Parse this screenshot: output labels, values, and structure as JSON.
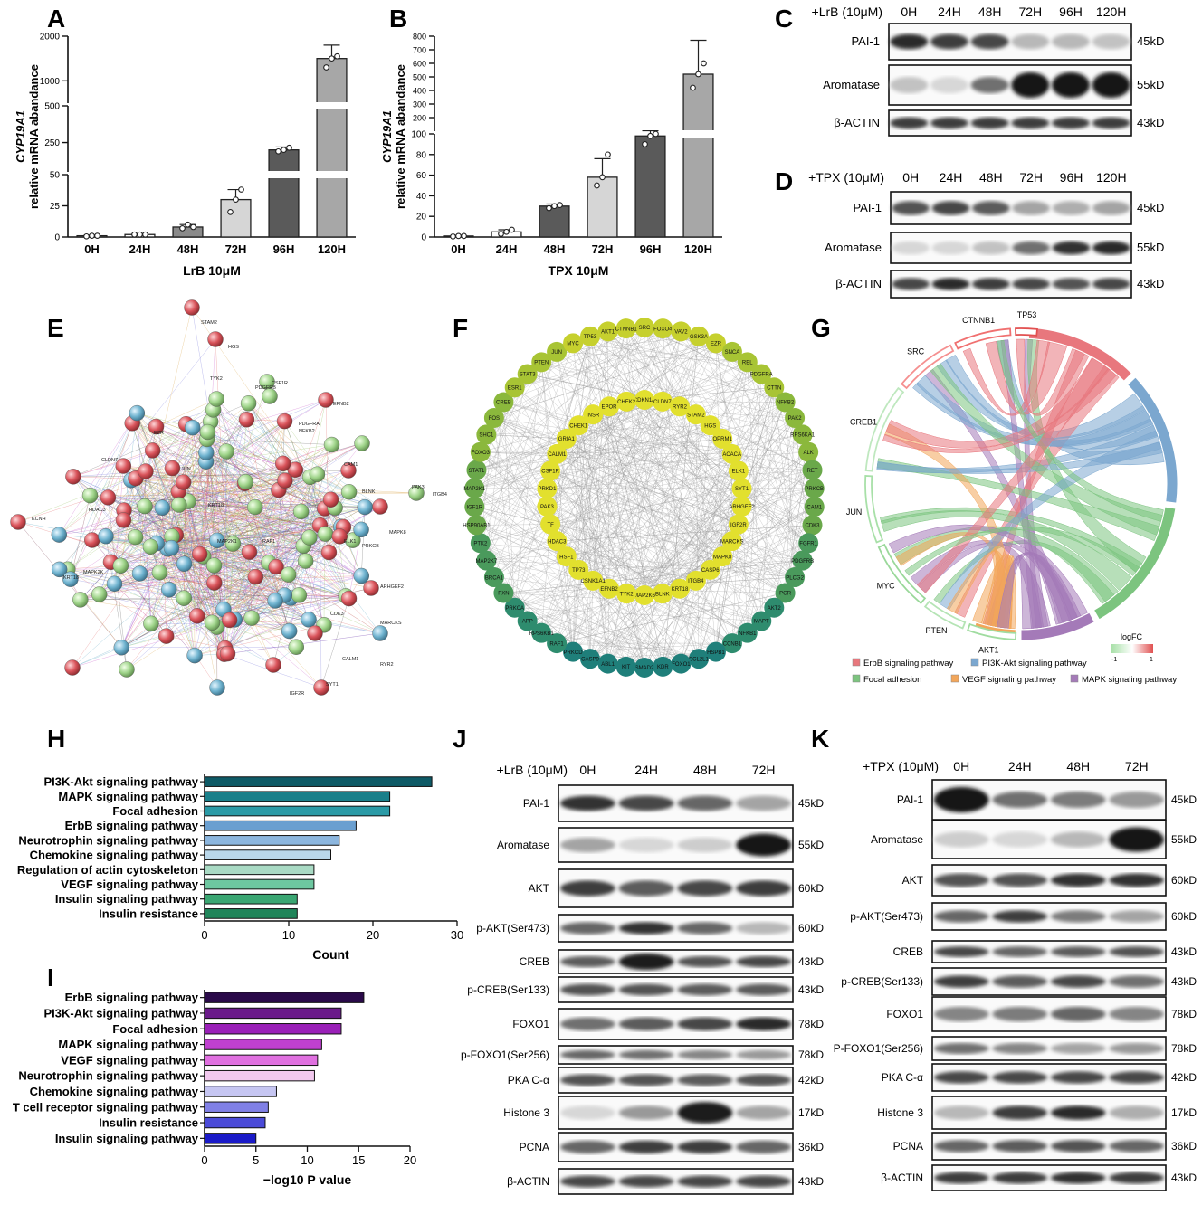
{
  "panels": {
    "A": "A",
    "B": "B",
    "C": "C",
    "D": "D",
    "E": "E",
    "F": "F",
    "G": "G",
    "H": "H",
    "I": "I",
    "J": "J",
    "K": "K"
  },
  "chart_data": [
    {
      "panel": "A",
      "type": "bar",
      "categories": [
        "0H",
        "24H",
        "48H",
        "72H",
        "96H",
        "120H"
      ],
      "values": [
        1,
        2,
        8,
        30,
        200,
        1500
      ],
      "points": [
        [
          0.5,
          1,
          1
        ],
        [
          2,
          2,
          2
        ],
        [
          7,
          10,
          8
        ],
        [
          20,
          30,
          38
        ],
        [
          190,
          200,
          215
        ],
        [
          1300,
          1500,
          1550
        ]
      ],
      "error": [
        0.5,
        0.5,
        2,
        8,
        20,
        300
      ],
      "ylabel_gene": "CYP19A1",
      "ylabel": "relative mRNA abandance",
      "xlabel": "LrB 10μM",
      "yticks_labels": [
        "0",
        "25",
        "50",
        "250",
        "500",
        "1000",
        "2000"
      ],
      "colors": [
        "#ffffff",
        "#ffffff",
        "#8a8a8a",
        "#d6d6d6",
        "#5a5a5a",
        "#a7a7a7"
      ]
    },
    {
      "panel": "B",
      "type": "bar",
      "categories": [
        "0H",
        "24H",
        "48H",
        "72H",
        "96H",
        "120H"
      ],
      "values": [
        1,
        5,
        30,
        58,
        98,
        520
      ],
      "points": [
        [
          0.5,
          1,
          1
        ],
        [
          3,
          5,
          7
        ],
        [
          28,
          30,
          31
        ],
        [
          50,
          58,
          80
        ],
        [
          90,
          98,
          100
        ],
        [
          420,
          520,
          600
        ]
      ],
      "error": [
        0.5,
        2,
        2,
        18,
        5,
        250
      ],
      "ylabel_gene": "CYP19A1",
      "ylabel": "relative mRNA abandance",
      "xlabel": "TPX 10μM",
      "yticks_labels": [
        "0",
        "20",
        "40",
        "60",
        "80",
        "100",
        "200",
        "300",
        "400",
        "500",
        "600",
        "700",
        "800"
      ],
      "colors": [
        "#ffffff",
        "#ffffff",
        "#5a5a5a",
        "#d6d6d6",
        "#5a5a5a",
        "#a7a7a7"
      ]
    },
    {
      "panel": "H",
      "type": "bar",
      "categories": [
        "PI3K-Akt signaling pathway",
        "MAPK signaling pathway",
        "Focal adhesion",
        "ErbB signaling pathway",
        "Neurotrophin signaling pathway",
        "Chemokine signaling pathway",
        "Regulation of actin cytoskeleton",
        "VEGF signaling pathway",
        "Insulin signaling pathway",
        "Insulin resistance"
      ],
      "values": [
        27,
        22,
        22,
        18,
        16,
        15,
        13,
        13,
        11,
        11
      ],
      "xlabel": "Count",
      "xticks": [
        "0",
        "10",
        "20",
        "30"
      ],
      "xlim": [
        0,
        30
      ],
      "colors": [
        "#0e5a66",
        "#1a7f8a",
        "#2a9aa6",
        "#6a9fd0",
        "#8cb6de",
        "#b9d7ea",
        "#a9dac4",
        "#6dc7a0",
        "#3aa672",
        "#20855a"
      ]
    },
    {
      "panel": "I",
      "type": "bar",
      "categories": [
        "ErbB signaling pathway",
        "PI3K-Akt signaling pathway",
        "Focal adhesion",
        "MAPK signaling pathway",
        "VEGF signaling pathway",
        "Neurotrophin signaling pathway",
        "Chemokine signaling pathway",
        "T cell receptor signaling pathway",
        "Insulin resistance",
        "Insulin signaling pathway"
      ],
      "values": [
        15.5,
        13.3,
        13.3,
        11.4,
        11,
        10.7,
        7,
        6.2,
        5.9,
        5
      ],
      "xlabel": "−log10 P value",
      "xticks": [
        "0",
        "5",
        "10",
        "15",
        "20"
      ],
      "xlim": [
        0,
        20
      ],
      "colors": [
        "#2a0a4a",
        "#6a1a8a",
        "#9a20b8",
        "#c040d0",
        "#e070e0",
        "#f2c8ee",
        "#c6c6f2",
        "#8080e6",
        "#4a4ad8",
        "#1a1ac8"
      ]
    }
  ],
  "blots": {
    "C": {
      "treatment": "+LrB (10μM)",
      "times": [
        "0H",
        "24H",
        "48H",
        "72H",
        "96H",
        "120H"
      ],
      "rows": [
        {
          "name": "PAI-1",
          "kd": "45kD",
          "intensity": [
            0.9,
            0.8,
            0.75,
            0.2,
            0.2,
            0.15
          ]
        },
        {
          "name": "Aromatase",
          "kd": "55kD",
          "intensity": [
            0.15,
            0.05,
            0.55,
            1,
            1,
            1
          ]
        },
        {
          "name": "β-ACTIN",
          "kd": "43kD",
          "intensity": [
            0.8,
            0.8,
            0.8,
            0.8,
            0.8,
            0.8
          ]
        }
      ]
    },
    "D": {
      "treatment": "+TPX (10μM)",
      "times": [
        "0H",
        "24H",
        "48H",
        "72H",
        "96H",
        "120H"
      ],
      "rows": [
        {
          "name": "PAI-1",
          "kd": "45kD",
          "intensity": [
            0.7,
            0.75,
            0.65,
            0.3,
            0.25,
            0.3
          ]
        },
        {
          "name": "Aromatase",
          "kd": "55kD",
          "intensity": [
            0.05,
            0.05,
            0.15,
            0.55,
            0.85,
            0.9
          ]
        },
        {
          "name": "β-ACTIN",
          "kd": "43kD",
          "intensity": [
            0.75,
            0.9,
            0.8,
            0.75,
            0.7,
            0.75
          ]
        }
      ]
    },
    "J": {
      "treatment": "+LrB (10μM)",
      "times": [
        "0H",
        "24H",
        "48H",
        "72H"
      ],
      "rows": [
        {
          "name": "PAI-1",
          "kd": "45kD",
          "intensity": [
            0.85,
            0.75,
            0.6,
            0.3
          ]
        },
        {
          "name": "Aromatase",
          "kd": "55kD",
          "intensity": [
            0.3,
            0.05,
            0.1,
            1
          ]
        },
        {
          "name": "AKT",
          "kd": "60kD",
          "intensity": [
            0.8,
            0.65,
            0.75,
            0.8
          ]
        },
        {
          "name": "p-AKT(Ser473)",
          "kd": "60kD",
          "intensity": [
            0.6,
            0.85,
            0.6,
            0.2
          ]
        },
        {
          "name": "CREB",
          "kd": "43kD",
          "intensity": [
            0.65,
            0.95,
            0.7,
            0.75
          ]
        },
        {
          "name": "p-CREB(Ser133)",
          "kd": "43kD",
          "intensity": [
            0.7,
            0.7,
            0.65,
            0.65
          ]
        },
        {
          "name": "FOXO1",
          "kd": "78kD",
          "intensity": [
            0.55,
            0.65,
            0.75,
            0.9
          ]
        },
        {
          "name": "p-FOXO1(Ser256)",
          "kd": "78kD",
          "intensity": [
            0.6,
            0.55,
            0.45,
            0.35
          ]
        },
        {
          "name": "PKA C-α",
          "kd": "42kD",
          "intensity": [
            0.7,
            0.7,
            0.65,
            0.7
          ]
        },
        {
          "name": "Histone 3",
          "kd": "17kD",
          "intensity": [
            0.05,
            0.35,
            0.95,
            0.3
          ]
        },
        {
          "name": "PCNA",
          "kd": "36kD",
          "intensity": [
            0.6,
            0.8,
            0.8,
            0.6
          ]
        },
        {
          "name": "β-ACTIN",
          "kd": "43kD",
          "intensity": [
            0.75,
            0.75,
            0.75,
            0.75
          ]
        }
      ]
    },
    "K": {
      "treatment": "+TPX (10μM)",
      "times": [
        "0H",
        "24H",
        "48H",
        "72H"
      ],
      "rows": [
        {
          "name": "PAI-1",
          "kd": "45kD",
          "intensity": [
            1,
            0.55,
            0.5,
            0.35
          ]
        },
        {
          "name": "Aromatase",
          "kd": "55kD",
          "intensity": [
            0.1,
            0.05,
            0.2,
            1
          ]
        },
        {
          "name": "AKT",
          "kd": "60kD",
          "intensity": [
            0.7,
            0.7,
            0.85,
            0.85
          ]
        },
        {
          "name": "p-AKT(Ser473)",
          "kd": "60kD",
          "intensity": [
            0.6,
            0.8,
            0.5,
            0.3
          ]
        },
        {
          "name": "CREB",
          "kd": "43kD",
          "intensity": [
            0.75,
            0.6,
            0.65,
            0.7
          ]
        },
        {
          "name": "p-CREB(Ser133)",
          "kd": "43kD",
          "intensity": [
            0.8,
            0.65,
            0.75,
            0.55
          ]
        },
        {
          "name": "FOXO1",
          "kd": "78kD",
          "intensity": [
            0.45,
            0.5,
            0.6,
            0.45
          ]
        },
        {
          "name": "P-FOXO1(Ser256)",
          "kd": "78kD",
          "intensity": [
            0.55,
            0.45,
            0.3,
            0.35
          ]
        },
        {
          "name": "PKA C-α",
          "kd": "42kD",
          "intensity": [
            0.75,
            0.75,
            0.75,
            0.75
          ]
        },
        {
          "name": "Histone 3",
          "kd": "17kD",
          "intensity": [
            0.2,
            0.8,
            0.9,
            0.25
          ]
        },
        {
          "name": "PCNA",
          "kd": "36kD",
          "intensity": [
            0.6,
            0.65,
            0.7,
            0.6
          ]
        },
        {
          "name": "β-ACTIN",
          "kd": "43kD",
          "intensity": [
            0.8,
            0.8,
            0.85,
            0.8
          ]
        }
      ]
    }
  },
  "network_E": {
    "nodes": [
      "STAM2",
      "HGS",
      "TYK2",
      "CSF1R",
      "EFNB2",
      "NFKB2",
      "PDGFRB",
      "CAM1",
      "BLNK",
      "PAK3",
      "ITGB4",
      "KCNH",
      "CLDN7",
      "HDAC3",
      "MAPK8",
      "MAPK2K",
      "KRT18",
      "PRKCB",
      "ARHGEF2",
      "MARCKS",
      "CALM1",
      "RYR2",
      "SYT1",
      "IGF2R",
      "CDK3",
      "PDGFRA",
      "ELK1",
      "RAF1",
      "KRT18",
      "MAP2K1",
      "JUN",
      "EZR"
    ],
    "colors": {
      "red": "#d9535a",
      "green": "#9fd48a",
      "blue": "#6fb3cf"
    }
  },
  "network_F": {
    "outer": [
      "SRC",
      "FOXO4",
      "VAV2",
      "GSK3A",
      "EZR",
      "SNCA",
      "REL",
      "PDGFRA",
      "CTTN",
      "NFKB2",
      "PAK2",
      "RPS6KA1",
      "ALK",
      "RET",
      "PRKCB",
      "CAM1",
      "CDK3",
      "FGFR1",
      "PDGFRB",
      "PLCG2",
      "PGR",
      "AKT2",
      "MAPT",
      "NFKB1",
      "CCNB1",
      "HSPB1",
      "BCL2L1",
      "FOXO1",
      "KDR",
      "SMAD2",
      "KIT",
      "ABL1",
      "CASP9",
      "PRKCD",
      "RAF1",
      "RPS6KB1",
      "APP",
      "PRKCA",
      "PXN",
      "BRCA1",
      "MAP2K7",
      "PTK2",
      "HSP90AB1",
      "IGF1R",
      "MAP2K1",
      "STAT1",
      "FOXO3",
      "SHC1",
      "FOS",
      "CREB",
      "ESR1",
      "STAT3",
      "PTEN",
      "JUN",
      "MYC",
      "TP53",
      "AKT1",
      "CTNNB1"
    ],
    "inner": [
      "CDKN1A",
      "CLDN7",
      "RYR2",
      "STAM2",
      "HGS",
      "OPRM1",
      "ACACA",
      "ELK1",
      "SYT1",
      "ARHGEF2",
      "IGF2R",
      "MARCKS",
      "MAPK8",
      "CASP6",
      "ITGB4",
      "KRT18",
      "BLNK",
      "MAP2K6",
      "TYK2",
      "EFNB2",
      "CSNK1A1",
      "TP73",
      "HSF1",
      "HDAC3",
      "TF",
      "PAK3",
      "PRKD1",
      "CSF1R",
      "CALM1",
      "GRIA1",
      "CHEK1",
      "INSR",
      "EPOR",
      "CHEK2"
    ]
  },
  "chord_G": {
    "genes": [
      "TP53",
      "CTNNB1",
      "SRC",
      "CREB1",
      "JUN",
      "MYC",
      "PTEN",
      "AKT1"
    ],
    "pathways": [
      "ErbB signaling pathway",
      "PI3K-Akt signaling pathway",
      "Focal adhesion",
      "VEGF signaling pathway",
      "MAPK signaling pathway"
    ],
    "pathway_colors": [
      "#e8777d",
      "#7ba7cf",
      "#7cc47f",
      "#f2a65a",
      "#a47ab8"
    ],
    "legend_title": "logFC",
    "legend_min": "-1",
    "legend_max": "1"
  }
}
